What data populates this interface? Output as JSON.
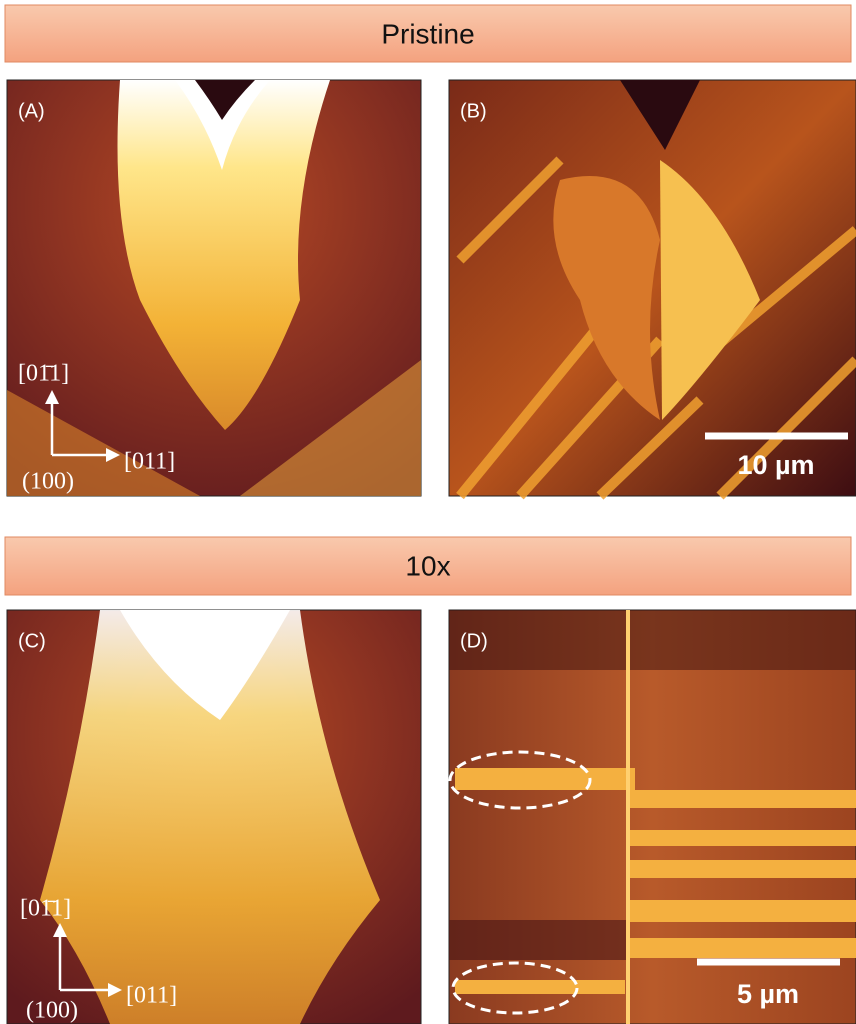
{
  "sections": [
    {
      "title": "Pristine",
      "panels": [
        {
          "label": "(A)",
          "directions": {
            "up": "[01̄1]",
            "right": "[011]",
            "normal": "(100)"
          }
        },
        {
          "label": "(B)",
          "scale_bar": "10 µm"
        }
      ]
    },
    {
      "title": "10x",
      "panels": [
        {
          "label": "(C)",
          "directions": {
            "up": "[01̄1]",
            "right": "[011]",
            "normal": "(100)"
          }
        },
        {
          "label": "(D)",
          "scale_bar": "5 µm"
        }
      ]
    }
  ]
}
